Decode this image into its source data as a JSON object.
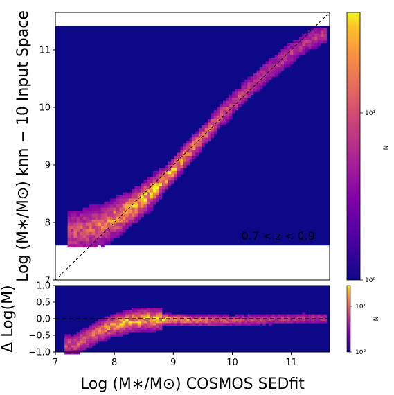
{
  "chart_data": [
    {
      "type": "heatmap",
      "name": "main",
      "xlim": [
        7.0,
        11.65
      ],
      "ylim": [
        7.0,
        11.65
      ],
      "x_ticks": [
        7,
        8,
        9,
        10,
        11
      ],
      "y_ticks": [
        7,
        8,
        9,
        10,
        11
      ],
      "x_tick_labels": [
        "7",
        "8",
        "9",
        "10",
        "11"
      ],
      "y_tick_labels": [
        "7",
        "8",
        "9",
        "10",
        "11"
      ],
      "ylabel": "Log (M∗/M⊙) knn − 10 Input Space",
      "annotation": "0.7 < z < 0.9",
      "reference_line": "y = x",
      "filled_y_range": [
        7.6,
        11.42
      ],
      "background_color": "#0d0887",
      "colormap": "plasma",
      "colorbar": {
        "label": "N",
        "scale": "log",
        "min_label": "10⁰",
        "mid_label": "10¹"
      },
      "ridge": [
        [
          7.3,
          7.85
        ],
        [
          7.7,
          7.95
        ],
        [
          8.0,
          8.1
        ],
        [
          8.3,
          8.3
        ],
        [
          8.6,
          8.55
        ],
        [
          8.9,
          8.85
        ],
        [
          9.2,
          9.2
        ],
        [
          9.5,
          9.55
        ],
        [
          9.8,
          9.9
        ],
        [
          10.1,
          10.2
        ],
        [
          10.4,
          10.5
        ],
        [
          10.7,
          10.75
        ],
        [
          11.0,
          11.0
        ],
        [
          11.3,
          11.2
        ],
        [
          11.5,
          11.3
        ]
      ]
    },
    {
      "type": "heatmap",
      "name": "residual",
      "xlim": [
        7.0,
        11.65
      ],
      "ylim": [
        -1.0,
        1.0
      ],
      "x_ticks": [
        7,
        8,
        9,
        10,
        11
      ],
      "y_ticks": [
        -1.0,
        -0.5,
        0.0,
        0.5,
        1.0
      ],
      "x_tick_labels": [
        "7",
        "8",
        "9",
        "10",
        "11"
      ],
      "y_tick_labels": [
        "−1.0",
        "−0.5",
        "0.0",
        "0.5",
        "1.0"
      ],
      "xlabel": "Log (M∗/M⊙) COSMOS SEDfit",
      "ylabel": "Δ Log(M)",
      "reference_line": "y = 0",
      "background_color": "#0d0887",
      "colormap": "plasma",
      "colorbar": {
        "label": "N",
        "scale": "log",
        "min_label": "10⁰",
        "mid_label": "10¹"
      },
      "ridge": [
        [
          7.3,
          -0.75
        ],
        [
          7.6,
          -0.45
        ],
        [
          7.9,
          -0.2
        ],
        [
          8.2,
          -0.05
        ],
        [
          8.5,
          0.02
        ],
        [
          8.8,
          0.02
        ],
        [
          9.2,
          0.0
        ],
        [
          9.6,
          -0.02
        ],
        [
          10.0,
          -0.01
        ],
        [
          10.4,
          0.0
        ],
        [
          10.8,
          0.03
        ],
        [
          11.2,
          0.05
        ],
        [
          11.5,
          0.05
        ]
      ]
    }
  ]
}
